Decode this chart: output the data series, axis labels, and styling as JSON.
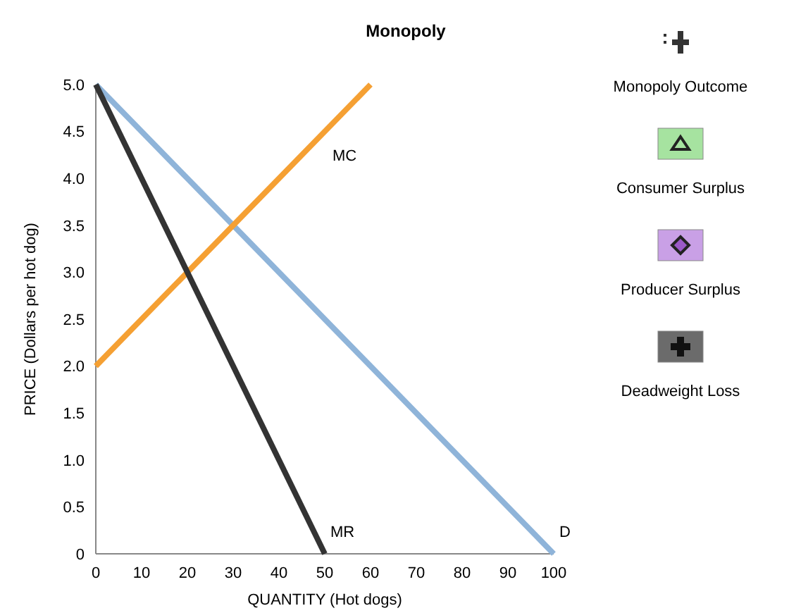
{
  "chart_data": {
    "type": "line",
    "title": "Monopoly",
    "xlabel": "QUANTITY (Hot dogs)",
    "ylabel": "PRICE (Dollars per hot dog)",
    "xlim": [
      0,
      100
    ],
    "xticks": [
      0,
      10,
      20,
      30,
      40,
      50,
      60,
      70,
      80,
      90,
      100
    ],
    "ylim": [
      0,
      5
    ],
    "yticks": [
      {
        "value": 0,
        "label": "0"
      },
      {
        "value": 0.5,
        "label": "0.5"
      },
      {
        "value": 1,
        "label": "1.0"
      },
      {
        "value": 1.5,
        "label": "1.5"
      },
      {
        "value": 2,
        "label": "2.0"
      },
      {
        "value": 2.5,
        "label": "2.5"
      },
      {
        "value": 3,
        "label": "3.0"
      },
      {
        "value": 3.5,
        "label": "3.5"
      },
      {
        "value": 4,
        "label": "4.0"
      },
      {
        "value": 4.5,
        "label": "4.5"
      },
      {
        "value": 5,
        "label": "5.0"
      }
    ],
    "grid": false,
    "marker": "none",
    "line_style": "solid",
    "series": [
      {
        "name": "D",
        "color": "#8fb4d9",
        "x": [
          0,
          100
        ],
        "values": [
          5,
          0
        ]
      },
      {
        "name": "MC",
        "color": "#f5a033",
        "x": [
          0,
          60
        ],
        "values": [
          2,
          5
        ]
      },
      {
        "name": "MR",
        "color": "#333333",
        "x": [
          0,
          50
        ],
        "values": [
          5,
          0
        ]
      }
    ],
    "annotations": [
      "Monopoly Outcome",
      "Consumer Surplus",
      "Producer Surplus",
      "Deadweight Loss"
    ]
  }
}
